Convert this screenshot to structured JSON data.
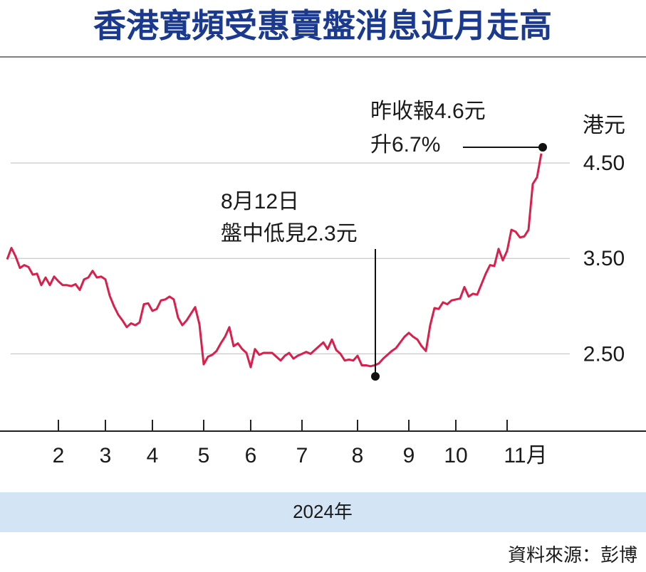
{
  "chart_data": {
    "type": "line",
    "title": "香港寬頻受惠賣盤消息近月走高",
    "ylabel": "港元",
    "xlabel": "2024年",
    "source": "資料來源：彭博",
    "annotations": [
      {
        "lines": [
          "昨收報4.6元",
          "升6.7%"
        ]
      },
      {
        "lines": [
          "8月12日",
          "盤中低見2.3元"
        ]
      }
    ],
    "categories": [
      null,
      null,
      null,
      null,
      null,
      null,
      null,
      null,
      null,
      null,
      null,
      null,
      "2",
      null,
      null,
      null,
      null,
      null,
      null,
      null,
      null,
      null,
      null,
      "3",
      null,
      null,
      null,
      null,
      null,
      null,
      null,
      null,
      null,
      null,
      "4",
      null,
      null,
      null,
      null,
      null,
      null,
      null,
      null,
      null,
      null,
      null,
      "5",
      null,
      null,
      null,
      null,
      null,
      null,
      null,
      null,
      null,
      null,
      "6",
      null,
      null,
      null,
      null,
      null,
      null,
      null,
      null,
      null,
      null,
      null,
      "7",
      null,
      null,
      null,
      null,
      null,
      null,
      null,
      null,
      null,
      null,
      null,
      null,
      "8",
      null,
      null,
      null,
      null,
      null,
      null,
      null,
      null,
      null,
      null,
      null,
      "9",
      null,
      null,
      null,
      null,
      null,
      null,
      null,
      null,
      null,
      null,
      "10",
      null,
      null,
      null,
      null,
      null,
      null,
      null,
      null,
      null,
      null,
      null,
      "11月",
      null,
      null,
      null,
      null,
      null,
      null,
      null,
      null
    ],
    "series": [
      {
        "name": "香港寬頻",
        "color": "#d91f4c",
        "values": [
          3.49,
          3.61,
          3.52,
          3.4,
          3.43,
          3.41,
          3.33,
          3.34,
          3.22,
          3.3,
          3.22,
          3.31,
          3.26,
          3.22,
          3.22,
          3.21,
          3.23,
          3.17,
          3.28,
          3.3,
          3.37,
          3.3,
          3.31,
          3.28,
          3.11,
          3.0,
          2.91,
          2.85,
          2.78,
          2.82,
          2.8,
          2.83,
          3.02,
          3.03,
          2.95,
          2.97,
          3.06,
          3.07,
          3.1,
          3.07,
          2.88,
          2.8,
          2.85,
          2.92,
          2.99,
          2.81,
          2.39,
          2.47,
          2.49,
          2.53,
          2.61,
          2.68,
          2.78,
          2.58,
          2.61,
          2.55,
          2.51,
          2.36,
          2.55,
          2.49,
          2.51,
          2.51,
          2.51,
          2.47,
          2.43,
          2.48,
          2.51,
          2.45,
          2.48,
          2.5,
          2.52,
          2.5,
          2.54,
          2.58,
          2.62,
          2.55,
          2.65,
          2.54,
          2.5,
          2.43,
          2.44,
          2.43,
          2.48,
          2.38,
          2.38,
          2.37,
          2.38,
          2.4,
          2.45,
          2.49,
          2.53,
          2.56,
          2.62,
          2.68,
          2.72,
          2.68,
          2.65,
          2.58,
          2.53,
          2.8,
          2.98,
          2.97,
          3.04,
          3.02,
          3.06,
          3.07,
          3.08,
          3.2,
          3.1,
          3.13,
          3.12,
          3.23,
          3.34,
          3.43,
          3.42,
          3.6,
          3.48,
          3.58,
          3.8,
          3.78,
          3.72,
          3.73,
          3.8,
          4.28,
          4.35,
          4.6
        ]
      }
    ],
    "ylim": [
      1.69,
      5.5
    ],
    "yticks": [
      {
        "value": 2.5,
        "label": "2.50"
      },
      {
        "value": 3.5,
        "label": "3.50"
      },
      {
        "value": 4.5,
        "label": "4.50"
      }
    ],
    "grid": true
  }
}
